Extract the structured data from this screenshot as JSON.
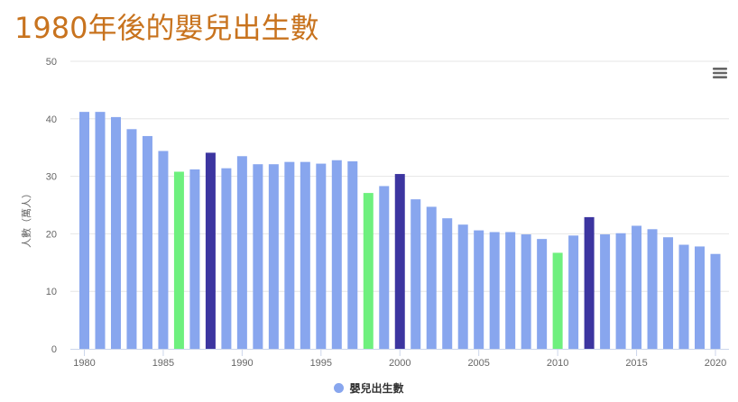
{
  "title": "1980年後的嬰兒出生數",
  "legend": {
    "label": "嬰兒出生數"
  },
  "colors": {
    "title": "#c8731e",
    "bar_default": "#88a6ee",
    "bar_green": "#6ef07e",
    "bar_dark": "#3c35a0",
    "grid": "#e6e6e6",
    "axis": "#ccd6eb",
    "tick_text": "#666666",
    "menu_icon": "#666666"
  },
  "menu": {
    "icon": "hamburger-menu-icon"
  },
  "chart_data": {
    "type": "bar",
    "title": "1980年後的嬰兒出生數",
    "xlabel": "",
    "ylabel": "人數（萬人）",
    "ylim": [
      0,
      50
    ],
    "yticks": [
      0,
      10,
      20,
      30,
      40,
      50
    ],
    "xticks": [
      1980,
      1985,
      1990,
      1995,
      2000,
      2005,
      2010,
      2015,
      2020
    ],
    "grid": true,
    "legend_position": "bottom-center",
    "series": [
      {
        "name": "嬰兒出生數",
        "x": [
          1980,
          1981,
          1982,
          1983,
          1984,
          1985,
          1986,
          1987,
          1988,
          1989,
          1990,
          1991,
          1992,
          1993,
          1994,
          1995,
          1996,
          1997,
          1998,
          1999,
          2000,
          2001,
          2002,
          2003,
          2004,
          2005,
          2006,
          2007,
          2008,
          2009,
          2010,
          2011,
          2012,
          2013,
          2014,
          2015,
          2016,
          2017,
          2018,
          2019,
          2020
        ],
        "values": [
          41.2,
          41.2,
          40.3,
          38.2,
          37.0,
          34.4,
          30.8,
          31.2,
          34.1,
          31.4,
          33.5,
          32.1,
          32.1,
          32.5,
          32.5,
          32.2,
          32.8,
          32.6,
          27.1,
          28.3,
          30.4,
          26.0,
          24.7,
          22.7,
          21.6,
          20.6,
          20.3,
          20.3,
          19.9,
          19.1,
          16.7,
          19.7,
          22.9,
          19.9,
          20.1,
          21.4,
          20.8,
          19.4,
          18.1,
          17.8,
          16.5
        ],
        "highlight": {
          "green": [
            1986,
            1998,
            2010
          ],
          "dark": [
            1988,
            2000,
            2012
          ]
        }
      }
    ]
  }
}
